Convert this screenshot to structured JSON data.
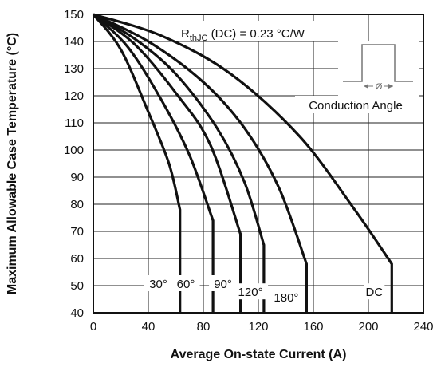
{
  "chart_data": {
    "type": "line",
    "title": "",
    "xlabel": "Average On-state Current (A)",
    "ylabel": "Maximum Allowable Case Temperature (°C)",
    "xlim": [
      0,
      240
    ],
    "ylim": [
      40,
      150
    ],
    "x_ticks": [
      0,
      40,
      80,
      120,
      160,
      200,
      240
    ],
    "y_ticks": [
      40,
      50,
      60,
      70,
      80,
      90,
      100,
      110,
      120,
      130,
      140,
      150
    ],
    "grid": true,
    "annotation": {
      "rth_prefix": "R",
      "rth_subscript": "thJC",
      "rth_suffix": " (DC) = 0.23  °C/W",
      "inset_label": "Conduction Angle",
      "inset_symbol": "Ø"
    },
    "series": [
      {
        "name": "30°",
        "label_xy": [
          60,
          50
        ],
        "points": [
          [
            0,
            150
          ],
          [
            20,
            137
          ],
          [
            40,
            114
          ],
          [
            55,
            95
          ],
          [
            63,
            78
          ],
          [
            63,
            40
          ]
        ]
      },
      {
        "name": "60°",
        "label_xy": [
          80,
          50
        ],
        "points": [
          [
            0,
            150
          ],
          [
            25,
            138
          ],
          [
            50,
            118
          ],
          [
            70,
            98
          ],
          [
            87,
            74
          ],
          [
            87,
            40
          ]
        ]
      },
      {
        "name": "90°",
        "label_xy": [
          107,
          50
        ],
        "points": [
          [
            0,
            150
          ],
          [
            30,
            139
          ],
          [
            60,
            121
          ],
          [
            85,
            102
          ],
          [
            107,
            69
          ],
          [
            107,
            40
          ]
        ]
      },
      {
        "name": "120°",
        "label_xy": [
          127,
          47
        ],
        "points": [
          [
            0,
            150
          ],
          [
            30,
            141
          ],
          [
            60,
            128
          ],
          [
            90,
            108
          ],
          [
            110,
            88
          ],
          [
            124,
            65
          ],
          [
            124,
            40
          ]
        ]
      },
      {
        "name": "180°",
        "label_xy": [
          153,
          45
        ],
        "points": [
          [
            0,
            150
          ],
          [
            40,
            140
          ],
          [
            80,
            125
          ],
          [
            110,
            108
          ],
          [
            135,
            86
          ],
          [
            155,
            58
          ],
          [
            155,
            40
          ]
        ]
      },
      {
        "name": "DC",
        "label_xy": [
          217,
          47
        ],
        "points": [
          [
            0,
            150
          ],
          [
            50,
            142
          ],
          [
            100,
            128
          ],
          [
            150,
            105
          ],
          [
            190,
            78
          ],
          [
            217,
            58
          ],
          [
            217,
            40
          ]
        ]
      }
    ]
  }
}
